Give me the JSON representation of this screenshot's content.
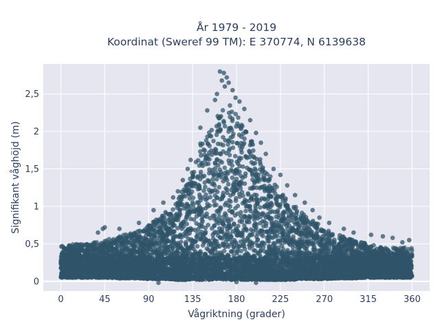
{
  "chart_data": {
    "type": "scatter",
    "title": "År 1979 - 2019",
    "subtitle": "Koordinat (Sweref 99 TM): E 370774, N 6139638",
    "xlabel": "Vågriktning (grader)",
    "ylabel": "Signifikant våghöjd (m)",
    "xlim": [
      -18,
      378
    ],
    "ylim": [
      -0.13,
      2.9
    ],
    "x_ticks": [
      0,
      45,
      90,
      135,
      180,
      225,
      270,
      315,
      360
    ],
    "x_tick_labels": [
      "0",
      "45",
      "90",
      "135",
      "180",
      "225",
      "270",
      "315",
      "360"
    ],
    "y_ticks": [
      0,
      0.5,
      1,
      1.5,
      2,
      2.5
    ],
    "y_tick_labels": [
      "0",
      "0,5",
      "1",
      "1,5",
      "2",
      "2,5"
    ],
    "grid": true,
    "marker_color": "#2f5469",
    "plot_bg": "#e5e6ef",
    "envelope": {
      "x": [
        0,
        20,
        45,
        60,
        80,
        90,
        100,
        110,
        120,
        130,
        135,
        140,
        145,
        150,
        155,
        160,
        165,
        170,
        175,
        180,
        185,
        190,
        195,
        200,
        210,
        220,
        225,
        235,
        245,
        255,
        270,
        285,
        300,
        315,
        330,
        345,
        360
      ],
      "upper": [
        0.48,
        0.5,
        0.55,
        0.6,
        0.68,
        0.75,
        0.85,
        0.95,
        1.1,
        1.35,
        1.55,
        1.75,
        1.9,
        2.0,
        2.1,
        2.2,
        2.3,
        2.35,
        2.35,
        2.25,
        2.1,
        2.0,
        1.9,
        1.75,
        1.5,
        1.3,
        1.2,
        1.05,
        0.95,
        0.85,
        0.7,
        0.62,
        0.55,
        0.5,
        0.45,
        0.45,
        0.45
      ],
      "lower": [
        0.05,
        0.05,
        0.05,
        0.04,
        0.04,
        0.03,
        0.03,
        0.03,
        0.02,
        0.02,
        0.02,
        0.02,
        0.02,
        0.02,
        0.02,
        0.02,
        0.02,
        0.02,
        0.02,
        0.02,
        0.02,
        0.02,
        0.02,
        0.02,
        0.02,
        0.02,
        0.02,
        0.02,
        0.03,
        0.03,
        0.03,
        0.04,
        0.04,
        0.05,
        0.05,
        0.05,
        0.05
      ]
    },
    "outliers": [
      {
        "x": 163,
        "y": 2.8
      },
      {
        "x": 167,
        "y": 2.78
      },
      {
        "x": 170,
        "y": 2.72
      },
      {
        "x": 165,
        "y": 2.68
      },
      {
        "x": 172,
        "y": 2.65
      },
      {
        "x": 168,
        "y": 2.6
      },
      {
        "x": 176,
        "y": 2.55
      },
      {
        "x": 160,
        "y": 2.5
      },
      {
        "x": 179,
        "y": 2.45
      },
      {
        "x": 158,
        "y": 2.42
      },
      {
        "x": 183,
        "y": 2.4
      },
      {
        "x": 188,
        "y": 2.3
      },
      {
        "x": 150,
        "y": 2.28
      },
      {
        "x": 194,
        "y": 2.15
      },
      {
        "x": 143,
        "y": 2.05
      },
      {
        "x": 200,
        "y": 1.98
      },
      {
        "x": 205,
        "y": 1.85
      },
      {
        "x": 210,
        "y": 1.7
      },
      {
        "x": 218,
        "y": 1.5
      },
      {
        "x": 225,
        "y": 1.42
      },
      {
        "x": 232,
        "y": 1.28
      },
      {
        "x": 240,
        "y": 1.15
      },
      {
        "x": 250,
        "y": 1.05
      },
      {
        "x": 258,
        "y": 0.95
      },
      {
        "x": 265,
        "y": 0.85
      },
      {
        "x": 275,
        "y": 0.78
      },
      {
        "x": 290,
        "y": 0.7
      },
      {
        "x": 300,
        "y": 0.65
      },
      {
        "x": 318,
        "y": 0.62
      },
      {
        "x": 330,
        "y": 0.6
      },
      {
        "x": 340,
        "y": 0.58
      },
      {
        "x": 350,
        "y": 0.52
      },
      {
        "x": 357,
        "y": 0.55
      },
      {
        "x": 45,
        "y": 0.72
      },
      {
        "x": 43,
        "y": 0.7
      },
      {
        "x": 38,
        "y": 0.65
      },
      {
        "x": 60,
        "y": 0.7
      },
      {
        "x": 80,
        "y": 0.78
      },
      {
        "x": 95,
        "y": 0.95
      },
      {
        "x": 105,
        "y": 1.05
      },
      {
        "x": 115,
        "y": 1.12
      },
      {
        "x": 120,
        "y": 1.2
      },
      {
        "x": 125,
        "y": 1.35
      },
      {
        "x": 130,
        "y": 1.5
      },
      {
        "x": 133,
        "y": 1.62
      },
      {
        "x": 100,
        "y": -0.02
      },
      {
        "x": 180,
        "y": -0.01
      },
      {
        "x": 200,
        "y": -0.02
      }
    ]
  }
}
